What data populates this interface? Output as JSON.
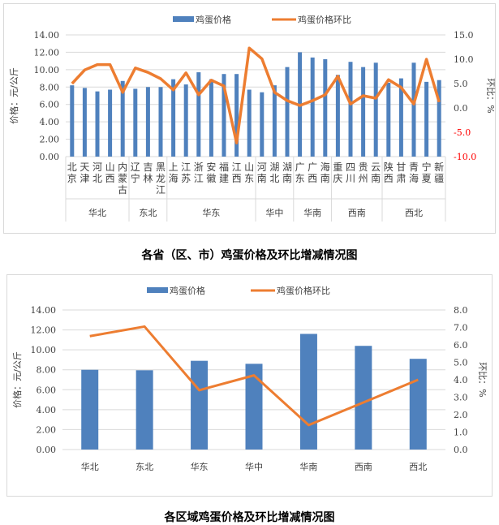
{
  "chart_data": [
    {
      "type": "bar+line",
      "title": "各省（区、市）鸡蛋价格及环比增减情况图",
      "legend": [
        "鸡蛋价格",
        "鸡蛋价格环比"
      ],
      "legend_placement": "top-center",
      "ylabel": "价格：元/公斤",
      "y2label": "环比：%",
      "ylim": [
        0,
        14
      ],
      "yticks": [
        "0.00",
        "2.00",
        "4.00",
        "6.00",
        "8.00",
        "10.00",
        "12.00",
        "14.00"
      ],
      "y2lim": [
        -10,
        15
      ],
      "y2ticks": [
        "-10.0",
        "-5.0",
        "0.0",
        "5.0",
        "10.0",
        "15.0"
      ],
      "categories": [
        "北京",
        "天津",
        "河北",
        "山西",
        "内蒙古",
        "辽宁",
        "吉林",
        "黑龙江",
        "上海",
        "江苏",
        "浙江",
        "安徽",
        "福建",
        "江西",
        "山东",
        "河南",
        "湖北",
        "湖南",
        "广东",
        "广西",
        "海南",
        "重庆",
        "四川",
        "贵州",
        "云南",
        "陕西",
        "甘肃",
        "青海",
        "宁夏",
        "新疆"
      ],
      "groups": [
        {
          "name": "华北",
          "count": 5
        },
        {
          "name": "东北",
          "count": 3
        },
        {
          "name": "华东",
          "count": 7
        },
        {
          "name": "华中",
          "count": 3
        },
        {
          "name": "华南",
          "count": 3
        },
        {
          "name": "西南",
          "count": 4
        },
        {
          "name": "西北",
          "count": 5
        }
      ],
      "series": [
        {
          "name": "鸡蛋价格",
          "axis": "left",
          "values": [
            8.2,
            7.9,
            7.5,
            7.7,
            8.7,
            7.8,
            8.0,
            8.0,
            8.9,
            8.3,
            9.7,
            8.9,
            9.5,
            9.5,
            7.7,
            7.4,
            8.2,
            10.3,
            12.0,
            11.4,
            11.2,
            9.4,
            10.9,
            10.3,
            10.8,
            8.5,
            9.0,
            10.8,
            8.6,
            8.8
          ]
        },
        {
          "name": "鸡蛋价格环比",
          "axis": "right",
          "values": [
            5.0,
            7.8,
            8.9,
            8.9,
            3.2,
            8.2,
            7.3,
            6.0,
            3.7,
            7.2,
            2.7,
            5.7,
            4.5,
            -7.2,
            12.3,
            10.1,
            3.2,
            1.5,
            0.5,
            1.5,
            2.7,
            6.5,
            0.8,
            2.5,
            2.0,
            5.8,
            4.2,
            0.8,
            10.0,
            1.2
          ]
        }
      ],
      "colors": {
        "bar": "#4f81bd",
        "line": "#ed7d31",
        "negative_tick": "#ff0000"
      }
    },
    {
      "type": "bar+line",
      "title": "各区域鸡蛋价格及环比增减情况图",
      "legend": [
        "鸡蛋价格",
        "鸡蛋价格环比"
      ],
      "legend_placement": "top-center",
      "ylabel": "价格：元/公斤",
      "y2label": "环比：%",
      "ylim": [
        0,
        14
      ],
      "yticks": [
        "0.00",
        "2.00",
        "4.00",
        "6.00",
        "8.00",
        "10.00",
        "12.00",
        "14.00"
      ],
      "y2lim": [
        0,
        8
      ],
      "y2ticks": [
        "0.0",
        "1.0",
        "2.0",
        "3.0",
        "4.0",
        "5.0",
        "6.0",
        "7.0",
        "8.0"
      ],
      "categories": [
        "华北",
        "东北",
        "华东",
        "华中",
        "华南",
        "西南",
        "西北"
      ],
      "series": [
        {
          "name": "鸡蛋价格",
          "axis": "left",
          "values": [
            8.0,
            7.95,
            8.9,
            8.6,
            11.6,
            10.4,
            9.1
          ]
        },
        {
          "name": "鸡蛋价格环比",
          "axis": "right",
          "values": [
            6.5,
            7.05,
            3.4,
            4.25,
            1.4,
            2.7,
            4.0
          ]
        }
      ],
      "colors": {
        "bar": "#4f81bd",
        "line": "#ed7d31",
        "negative_tick": "#ff0000"
      }
    }
  ]
}
